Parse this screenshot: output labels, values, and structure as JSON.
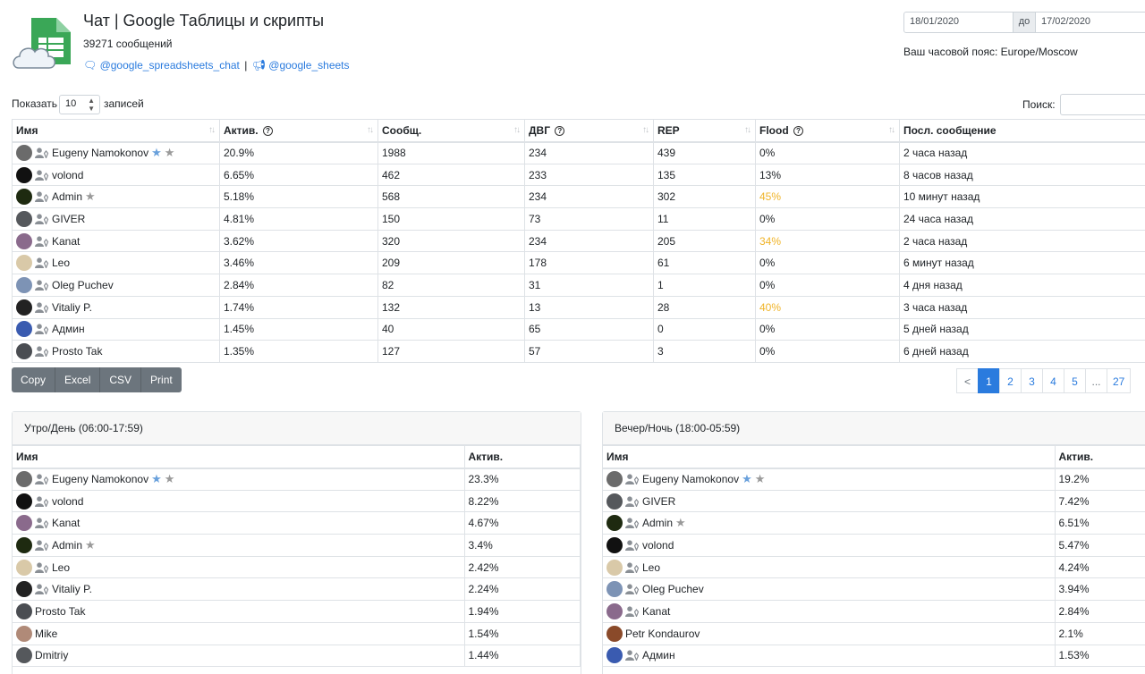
{
  "header": {
    "title": "Чат | Google Таблицы и скрипты",
    "message_count": "39271 сообщений",
    "chat_link": "@google_spreadsheets_chat",
    "separator": "|",
    "channel_link": "@google_sheets"
  },
  "dates": {
    "from": "18/01/2020",
    "to_label": "до",
    "to": "17/02/2020",
    "timezone": "Ваш часовой пояс: Europe/Moscow"
  },
  "controls": {
    "show_label": "Показать",
    "show_value": "10",
    "show_suffix": "записей",
    "search_label": "Поиск:",
    "search_value": ""
  },
  "main_table": {
    "columns": [
      "Имя",
      "Актив.",
      "Сообщ.",
      "ДВГ",
      "REP",
      "Flood",
      "Посл. сообщение"
    ],
    "rows": [
      {
        "name": "Eugeny Namokonov",
        "stars": [
          "blue",
          "grey"
        ],
        "avatar": "#6b6b6b",
        "active": "20.9%",
        "msgs": "1988",
        "dvg": "234",
        "rep": "439",
        "flood": "0%",
        "flood_warn": false,
        "last": "2 часа назад"
      },
      {
        "name": "volond",
        "stars": [],
        "avatar": "#111111",
        "active": "6.65%",
        "msgs": "462",
        "dvg": "233",
        "rep": "135",
        "flood": "13%",
        "flood_warn": false,
        "last": "8 часов назад"
      },
      {
        "name": "Admin",
        "stars": [
          "grey"
        ],
        "avatar": "#1e2a10",
        "active": "5.18%",
        "msgs": "568",
        "dvg": "234",
        "rep": "302",
        "flood": "45%",
        "flood_warn": true,
        "last": "10 минут назад"
      },
      {
        "name": "GIVER",
        "stars": [],
        "avatar": "#55585c",
        "active": "4.81%",
        "msgs": "150",
        "dvg": "73",
        "rep": "11",
        "flood": "0%",
        "flood_warn": false,
        "last": "24 часа назад"
      },
      {
        "name": "Kanat",
        "stars": [],
        "avatar": "#8a6a8c",
        "active": "3.62%",
        "msgs": "320",
        "dvg": "234",
        "rep": "205",
        "flood": "34%",
        "flood_warn": true,
        "last": "2 часа назад"
      },
      {
        "name": "Leo",
        "stars": [],
        "avatar": "#d9c9a8",
        "active": "3.46%",
        "msgs": "209",
        "dvg": "178",
        "rep": "61",
        "flood": "0%",
        "flood_warn": false,
        "last": "6 минут назад"
      },
      {
        "name": "Oleg Puchev",
        "stars": [],
        "avatar": "#7d93b5",
        "active": "2.84%",
        "msgs": "82",
        "dvg": "31",
        "rep": "1",
        "flood": "0%",
        "flood_warn": false,
        "last": "4 дня назад"
      },
      {
        "name": "Vitaliy P.",
        "stars": [],
        "avatar": "#222222",
        "active": "1.74%",
        "msgs": "132",
        "dvg": "13",
        "rep": "28",
        "flood": "40%",
        "flood_warn": true,
        "last": "3 часа назад"
      },
      {
        "name": "Админ",
        "stars": [],
        "avatar": "#3a5bb0",
        "active": "1.45%",
        "msgs": "40",
        "dvg": "65",
        "rep": "0",
        "flood": "0%",
        "flood_warn": false,
        "last": "5 дней назад"
      },
      {
        "name": "Prosto Tak",
        "stars": [],
        "avatar": "#4a4d52",
        "active": "1.35%",
        "msgs": "127",
        "dvg": "57",
        "rep": "3",
        "flood": "0%",
        "flood_warn": false,
        "last": "6 дней назад"
      }
    ]
  },
  "export_buttons": [
    "Copy",
    "Excel",
    "CSV",
    "Print"
  ],
  "pagination": [
    "<",
    "1",
    "2",
    "3",
    "4",
    "5",
    "...",
    "27"
  ],
  "colors": {
    "accent": "#2a7bde",
    "warning": "#f0b429",
    "button": "#6c757d"
  },
  "day_card": {
    "title": "Утро/День (06:00-17:59)",
    "columns": [
      "Имя",
      "Актив."
    ],
    "rows": [
      {
        "name": "Eugeny Namokonov",
        "stars": [
          "blue",
          "grey"
        ],
        "avatar": "#6b6b6b",
        "user_icon": true,
        "active": "23.3%"
      },
      {
        "name": "volond",
        "stars": [],
        "avatar": "#111111",
        "user_icon": true,
        "active": "8.22%"
      },
      {
        "name": "Kanat",
        "stars": [],
        "avatar": "#8a6a8c",
        "user_icon": true,
        "active": "4.67%"
      },
      {
        "name": "Admin",
        "stars": [
          "grey"
        ],
        "avatar": "#1e2a10",
        "user_icon": true,
        "active": "3.4%"
      },
      {
        "name": "Leo",
        "stars": [],
        "avatar": "#d9c9a8",
        "user_icon": true,
        "active": "2.42%"
      },
      {
        "name": "Vitaliy P.",
        "stars": [],
        "avatar": "#222222",
        "user_icon": true,
        "active": "2.24%"
      },
      {
        "name": "Prosto Tak",
        "stars": [],
        "avatar": "#4a4d52",
        "user_icon": false,
        "active": "1.94%"
      },
      {
        "name": "Mike",
        "stars": [],
        "avatar": "#b08a78",
        "user_icon": false,
        "active": "1.54%"
      },
      {
        "name": "Dmitriy",
        "stars": [],
        "avatar": "#55585c",
        "user_icon": false,
        "active": "1.44%"
      }
    ]
  },
  "night_card": {
    "title": "Вечер/Ночь (18:00-05:59)",
    "columns": [
      "Имя",
      "Актив."
    ],
    "rows": [
      {
        "name": "Eugeny Namokonov",
        "stars": [
          "blue",
          "grey"
        ],
        "avatar": "#6b6b6b",
        "user_icon": true,
        "active": "19.2%"
      },
      {
        "name": "GIVER",
        "stars": [],
        "avatar": "#55585c",
        "user_icon": true,
        "active": "7.42%"
      },
      {
        "name": "Admin",
        "stars": [
          "grey"
        ],
        "avatar": "#1e2a10",
        "user_icon": true,
        "active": "6.51%"
      },
      {
        "name": "volond",
        "stars": [],
        "avatar": "#111111",
        "user_icon": true,
        "active": "5.47%"
      },
      {
        "name": "Leo",
        "stars": [],
        "avatar": "#d9c9a8",
        "user_icon": true,
        "active": "4.24%"
      },
      {
        "name": "Oleg Puchev",
        "stars": [],
        "avatar": "#7d93b5",
        "user_icon": true,
        "active": "3.94%"
      },
      {
        "name": "Kanat",
        "stars": [],
        "avatar": "#8a6a8c",
        "user_icon": true,
        "active": "2.84%"
      },
      {
        "name": "Petr Kondaurov",
        "stars": [],
        "avatar": "#8a4a2a",
        "user_icon": false,
        "active": "2.1%"
      },
      {
        "name": "Админ",
        "stars": [],
        "avatar": "#3a5bb0",
        "user_icon": true,
        "active": "1.53%"
      }
    ]
  }
}
